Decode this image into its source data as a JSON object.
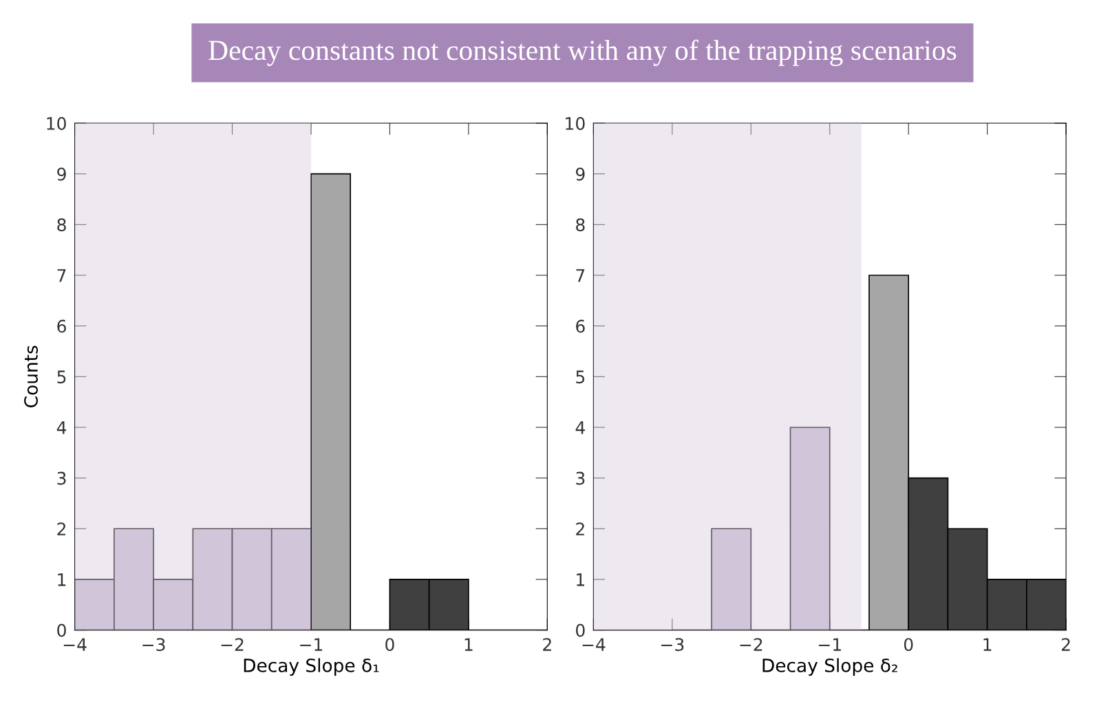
{
  "chart_data": [
    {
      "type": "histogram",
      "title": "Decay constants not consistent with any of the trapping scenarios",
      "ylabel": "Counts",
      "xlabel": "Decay Slope δ₁",
      "bins": [
        -4,
        -3.5,
        -3,
        -2.5,
        -2,
        -1.5,
        -1,
        -0.5,
        0,
        0.5,
        1,
        1.5,
        2
      ],
      "values": [
        1,
        2,
        1,
        2,
        2,
        2,
        9,
        0,
        1,
        1,
        0,
        0
      ],
      "colors": [
        "#cbbfd4",
        "#cbbfd4",
        "#cbbfd4",
        "#cbbfd4",
        "#cbbfd4",
        "#cbbfd4",
        "#a6a6a6",
        "#000000",
        "#404040",
        "#404040",
        "#000000",
        "#000000"
      ],
      "xlim": [
        -4,
        2
      ],
      "xticks": [
        -4,
        -3,
        -2,
        -1,
        0,
        1,
        2
      ],
      "ylim": [
        0,
        10
      ],
      "yticks": [
        0,
        1,
        2,
        3,
        4,
        5,
        6,
        7,
        8,
        9,
        10
      ],
      "bands": [
        {
          "axis": "x",
          "from": -4,
          "to": -1,
          "color": "#d9cce0"
        }
      ],
      "grid": false,
      "legend": false
    },
    {
      "type": "histogram",
      "xlabel": "Decay Slope δ₂",
      "bins": [
        -3,
        -2.5,
        -2,
        -1.5,
        -1,
        -0.5,
        0,
        0.5,
        1,
        1.5,
        2
      ],
      "values": [
        0,
        2,
        0,
        4,
        0,
        7,
        3,
        2,
        1,
        1
      ],
      "colors": [
        "#000000",
        "#cbbfd4",
        "#000000",
        "#cbbfd4",
        "#000000",
        "#a6a6a6",
        "#404040",
        "#404040",
        "#404040",
        "#404040"
      ],
      "xlim": [
        -4,
        2
      ],
      "xticks": [
        -4,
        -3,
        -2,
        -1,
        0,
        1,
        2
      ],
      "ylim": [
        0,
        10
      ],
      "yticks": [
        0,
        1,
        2,
        3,
        4,
        5,
        6,
        7,
        8,
        9,
        10
      ],
      "bands": [
        {
          "axis": "x",
          "from": -4,
          "to": -0.6,
          "color": "#d9cce0"
        }
      ],
      "grid": false,
      "legend": false
    }
  ]
}
